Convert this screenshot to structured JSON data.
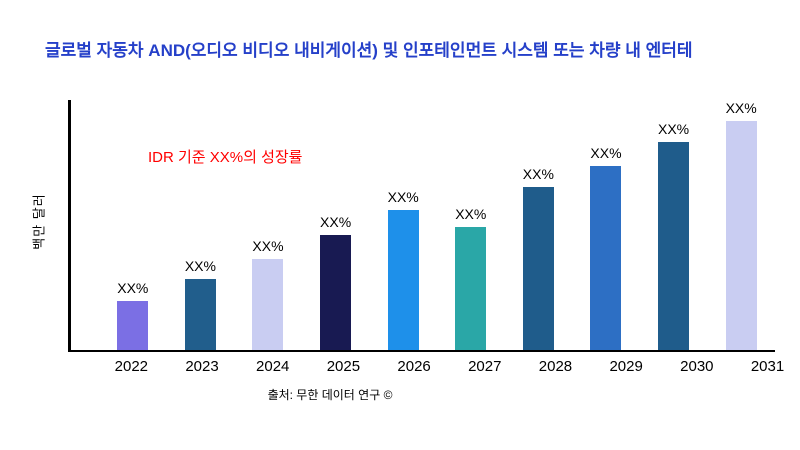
{
  "title": "글로벌 자동차 AND(오디오 비디오 내비게이션) 및 인포테인먼트 시스템 또는 차량 내 엔터테",
  "annotation": "IDR 기준 XX%의 성장률",
  "y_axis_label": "백만 달러",
  "source": "출처: 무한 데이터 연구 ©",
  "colors": {
    "title": "#2540c9",
    "annotation": "#ff0000",
    "axis": "#000000",
    "background": "#ffffff"
  },
  "chart_data": {
    "type": "bar",
    "title": "글로벌 자동차 AND(오디오 비디오 내비게이션) 및 인포테인먼트 시스템 또는 차량 내 엔터테",
    "xlabel": "",
    "ylabel": "백만 달러",
    "ylim": [
      0,
      250
    ],
    "grid": false,
    "legend": false,
    "annotation": "IDR 기준 XX%의 성장률",
    "categories": [
      "2022",
      "2023",
      "2024",
      "2025",
      "2026",
      "2027",
      "2028",
      "2029",
      "2030",
      "2031"
    ],
    "values": [
      49,
      71,
      91,
      115,
      140,
      123,
      163,
      184,
      208,
      232
    ],
    "bar_labels": [
      "XX%",
      "XX%",
      "XX%",
      "XX%",
      "XX%",
      "XX%",
      "XX%",
      "XX%",
      "XX%",
      "XX%"
    ],
    "bar_colors": [
      "#7b6fe4",
      "#215e8c",
      "#c9cdf2",
      "#181a52",
      "#1e90ea",
      "#2aa7a7",
      "#1f5c8b",
      "#2d6fc4",
      "#1f5c8b",
      "#c9cdf2"
    ]
  }
}
